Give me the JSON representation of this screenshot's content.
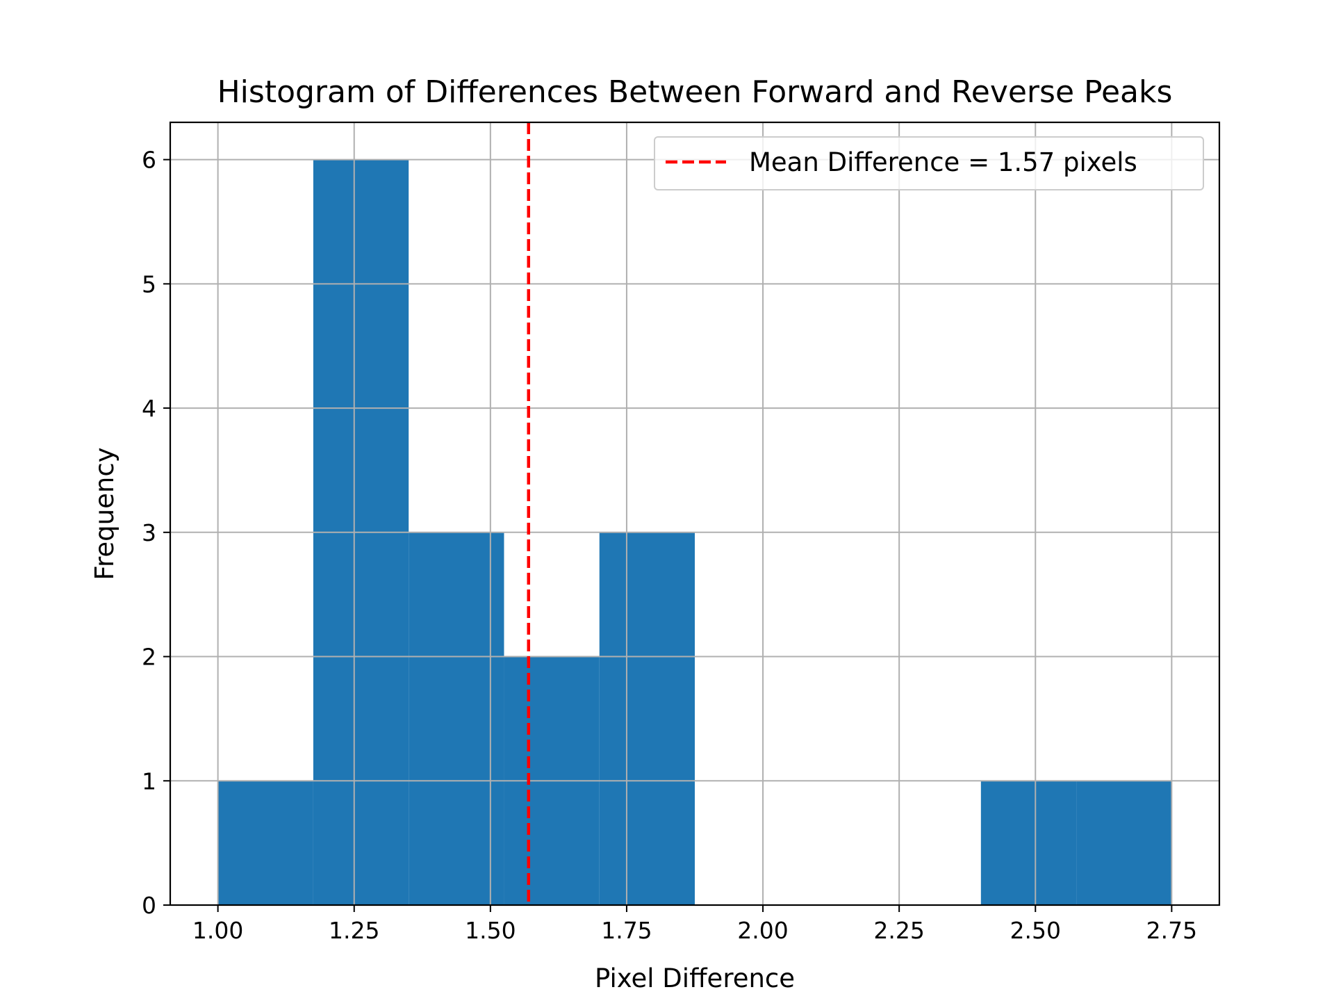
{
  "chart_data": {
    "type": "bar",
    "title": "Histogram of Differences Between Forward and Reverse Peaks",
    "xlabel": "Pixel Difference",
    "ylabel": "Frequency",
    "xlim": [
      0.9125,
      2.8375
    ],
    "ylim": [
      0,
      6.3
    ],
    "x_ticks": [
      "1.00",
      "1.25",
      "1.50",
      "1.75",
      "2.00",
      "2.25",
      "2.50",
      "2.75"
    ],
    "y_ticks": [
      "0",
      "1",
      "2",
      "3",
      "4",
      "5",
      "6"
    ],
    "bins": [
      {
        "start": 1.0,
        "end": 1.175,
        "count": 1
      },
      {
        "start": 1.175,
        "end": 1.35,
        "count": 6
      },
      {
        "start": 1.35,
        "end": 1.525,
        "count": 3
      },
      {
        "start": 1.525,
        "end": 1.7,
        "count": 2
      },
      {
        "start": 1.7,
        "end": 1.875,
        "count": 3
      },
      {
        "start": 1.875,
        "end": 2.05,
        "count": 0
      },
      {
        "start": 2.05,
        "end": 2.225,
        "count": 0
      },
      {
        "start": 2.225,
        "end": 2.4,
        "count": 0
      },
      {
        "start": 2.4,
        "end": 2.575,
        "count": 1
      },
      {
        "start": 2.575,
        "end": 2.75,
        "count": 1
      }
    ],
    "mean_line": {
      "x": 1.57,
      "color": "#ff0000",
      "style": "dashed"
    },
    "legend": {
      "label": "Mean Difference = 1.57 pixels",
      "placement": "top-right"
    },
    "bar_color": "#1f77b4",
    "grid": true
  }
}
